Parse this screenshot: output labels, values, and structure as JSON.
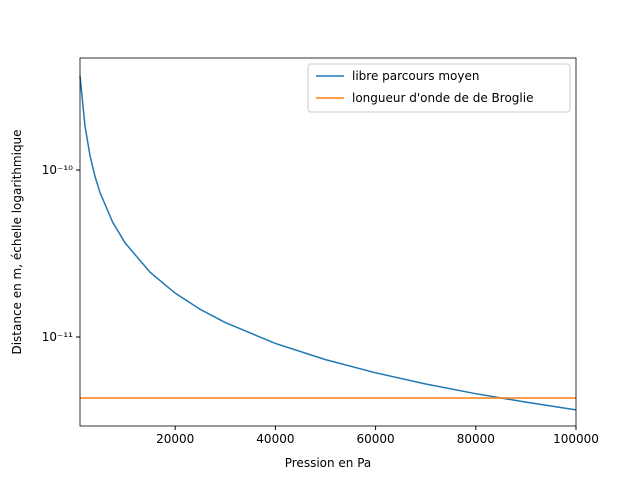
{
  "chart_data": {
    "type": "line",
    "xlabel": "Pression en Pa",
    "ylabel": "Distance en m, échelle logarithmique",
    "x": [
      1000,
      2000,
      3000,
      4000,
      5000,
      7500,
      10000,
      15000,
      20000,
      25000,
      30000,
      40000,
      50000,
      60000,
      70000,
      80000,
      90000,
      100000
    ],
    "series": [
      {
        "name": "libre parcours moyen",
        "color": "#1f77b4",
        "values": [
          3.66e-10,
          1.83e-10,
          1.22e-10,
          9.15e-11,
          7.32e-11,
          4.88e-11,
          3.66e-11,
          2.44e-11,
          1.83e-11,
          1.464e-11,
          1.22e-11,
          9.15e-12,
          7.32e-12,
          6.1e-12,
          5.23e-12,
          4.575e-12,
          4.07e-12,
          3.66e-12
        ]
      },
      {
        "name": "longueur d'onde de de Broglie",
        "color": "#ff7f0e",
        "values": [
          4.31e-12,
          4.31e-12,
          4.31e-12,
          4.31e-12,
          4.31e-12,
          4.31e-12,
          4.31e-12,
          4.31e-12,
          4.31e-12,
          4.31e-12,
          4.31e-12,
          4.31e-12,
          4.31e-12,
          4.31e-12,
          4.31e-12,
          4.31e-12,
          4.31e-12,
          4.31e-12
        ]
      }
    ],
    "xlim": [
      1000,
      100000
    ],
    "xticks": [
      20000,
      40000,
      60000,
      80000,
      100000
    ],
    "ylim": [
      2.93e-12,
      4.69e-10
    ],
    "yticks": [
      {
        "value": 1e-11,
        "label": "10⁻¹¹"
      },
      {
        "value": 1e-10,
        "label": "10⁻¹⁰"
      }
    ],
    "yscale": "log",
    "legend": "upper right"
  }
}
